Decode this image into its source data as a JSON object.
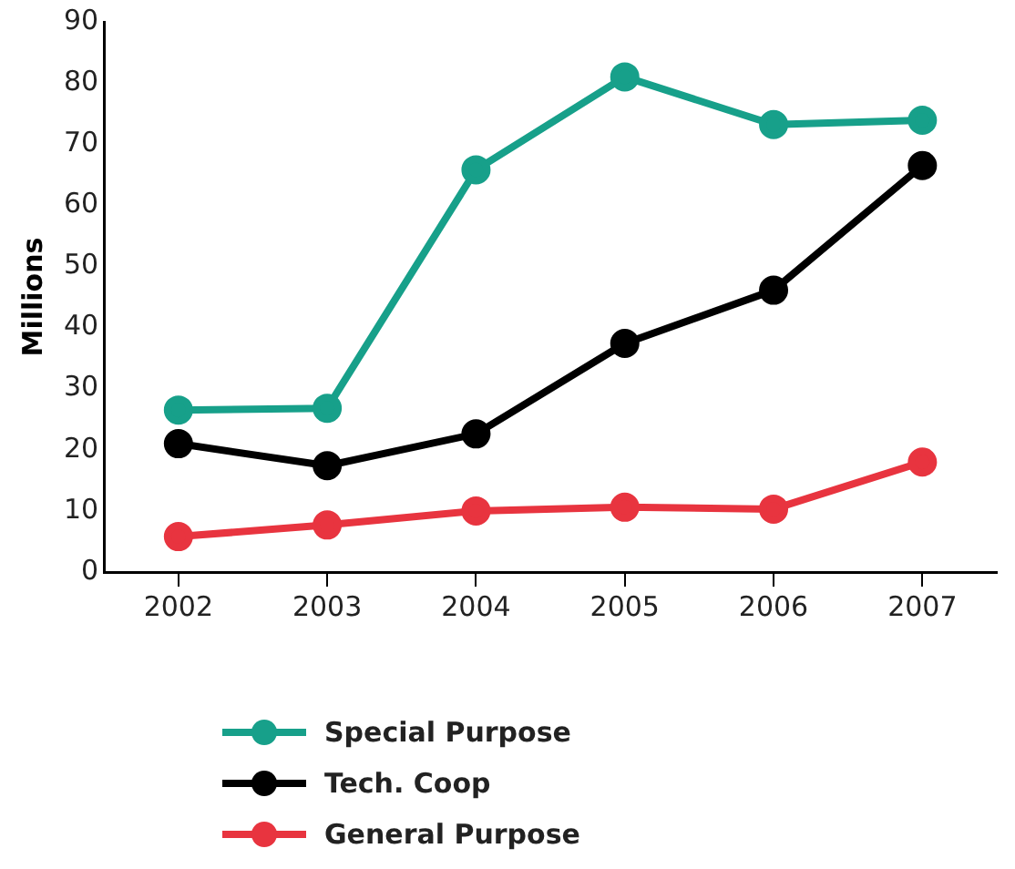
{
  "chart_data": {
    "type": "line",
    "ylabel": "Millions",
    "categories": [
      "2002",
      "2003",
      "2004",
      "2005",
      "2006",
      "2007"
    ],
    "series": [
      {
        "name": "Special Purpose",
        "color": "#17a08a",
        "values": [
          26.5,
          26.8,
          65.8,
          81,
          73.2,
          73.9
        ]
      },
      {
        "name": "Tech. Coop",
        "color": "#000000",
        "values": [
          21,
          17.4,
          22.6,
          37.4,
          46.1,
          66.5
        ]
      },
      {
        "name": "General Purpose",
        "color": "#e8343f",
        "values": [
          5.8,
          7.7,
          10,
          10.6,
          10.3,
          18
        ]
      }
    ],
    "ylim": [
      0,
      90
    ],
    "yticks": [
      0,
      10,
      20,
      30,
      40,
      50,
      60,
      70,
      80,
      90
    ],
    "grid": false,
    "legend": "bottom",
    "marker": "circle",
    "line_style": "solid"
  }
}
